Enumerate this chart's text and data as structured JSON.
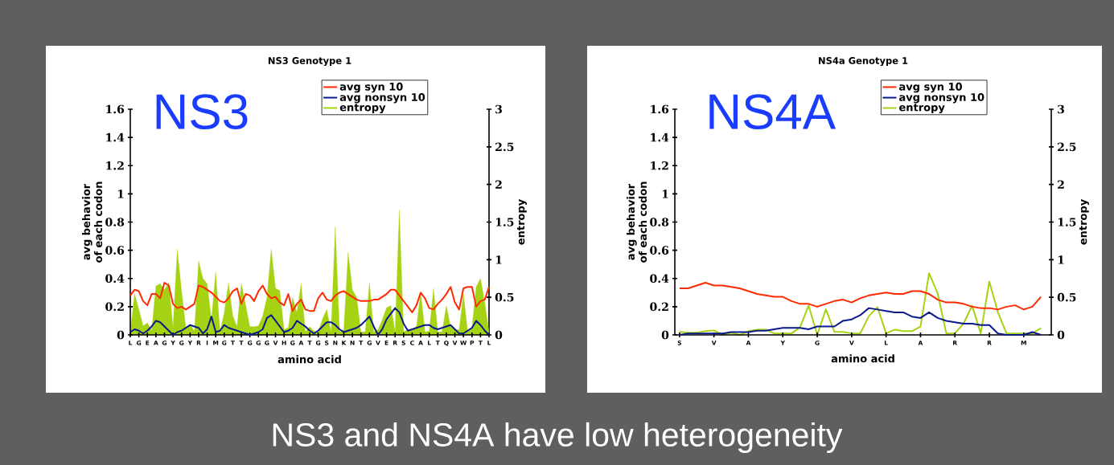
{
  "chart_data": [
    {
      "type": "line",
      "title": "NS3 Genotype 1",
      "xlabel": "amino acid",
      "ylabel": "avg behavior of each codon",
      "y2label": "entropy",
      "annotations": [
        "NS3"
      ],
      "legend": "top right",
      "categories": [
        "L",
        null,
        "G",
        null,
        "E",
        null,
        "A",
        null,
        "G",
        null,
        "Y",
        null,
        "G",
        null,
        "Y",
        null,
        "R",
        null,
        "I",
        null,
        "M",
        null,
        "G",
        null,
        "T",
        null,
        "T",
        null,
        "G",
        null,
        "G",
        null,
        "G",
        null,
        "V",
        null,
        "H",
        null,
        "G",
        null,
        "A",
        null,
        "T",
        null,
        "G",
        null,
        "S",
        null,
        "N",
        null,
        "K",
        null,
        "N",
        null,
        "T",
        null,
        "G",
        null,
        "V",
        null,
        "E",
        null,
        "R",
        null,
        "S",
        null,
        "C",
        null,
        "A",
        null,
        "L",
        null,
        "T",
        null,
        "Q",
        null,
        "V",
        null,
        "W",
        null,
        "P",
        null,
        "T",
        null,
        "L"
      ],
      "ylim": [
        0,
        1.6
      ],
      "yticks": [
        0,
        0.2,
        0.4,
        0.6,
        0.8,
        1,
        1.2,
        1.4,
        1.6
      ],
      "y2lim": [
        0,
        3
      ],
      "y2ticks": [
        0,
        0.5,
        1,
        1.5,
        2,
        2.5,
        3
      ],
      "series": [
        {
          "name": "avg syn 10",
          "color": "#ff2a00",
          "values": [
            0.28,
            0.32,
            0.31,
            0.24,
            0.21,
            0.29,
            0.29,
            0.26,
            0.37,
            0.35,
            0.22,
            0.19,
            0.2,
            0.18,
            0.2,
            0.22,
            0.35,
            0.34,
            0.32,
            0.3,
            0.27,
            0.24,
            0.23,
            0.26,
            0.31,
            0.33,
            0.22,
            0.29,
            0.28,
            0.24,
            0.31,
            0.35,
            0.29,
            0.26,
            0.27,
            0.23,
            0.21,
            0.29,
            0.17,
            0.22,
            0.25,
            0.18,
            0.17,
            0.17,
            0.26,
            0.3,
            0.25,
            0.24,
            0.28,
            0.3,
            0.31,
            0.29,
            0.27,
            0.25,
            0.24,
            0.24,
            0.24,
            0.25,
            0.25,
            0.27,
            0.29,
            0.32,
            0.32,
            0.28,
            0.24,
            0.2,
            0.16,
            0.21,
            0.3,
            0.26,
            0.19,
            0.18,
            0.22,
            0.25,
            0.29,
            0.34,
            0.23,
            0.18,
            0.33,
            0.34,
            0.34,
            0.2,
            0.24,
            0.25,
            0.34
          ]
        },
        {
          "name": "avg nonsyn 10",
          "color": "#0a1a8c",
          "values": [
            0.02,
            0.04,
            0.03,
            0.01,
            0.03,
            0.06,
            0.1,
            0.09,
            0.06,
            0.03,
            0.0,
            0.02,
            0.03,
            0.05,
            0.07,
            0.06,
            0.05,
            0.01,
            0.04,
            0.13,
            0.02,
            0.03,
            0.07,
            0.05,
            0.04,
            0.03,
            0.02,
            0.01,
            0.0,
            0.01,
            0.02,
            0.04,
            0.12,
            0.14,
            0.1,
            0.06,
            0.02,
            0.03,
            0.05,
            0.1,
            0.08,
            0.06,
            0.03,
            0.01,
            0.03,
            0.06,
            0.09,
            0.09,
            0.07,
            0.04,
            0.02,
            0.03,
            0.04,
            0.05,
            0.07,
            0.1,
            0.13,
            0.06,
            0.0,
            0.04,
            0.11,
            0.15,
            0.19,
            0.16,
            0.08,
            0.03,
            0.04,
            0.05,
            0.06,
            0.07,
            0.07,
            0.05,
            0.04,
            0.05,
            0.06,
            0.07,
            0.04,
            0.01,
            0.01,
            0.03,
            0.05,
            0.1,
            0.07,
            0.03,
            0.0
          ]
        },
        {
          "name": "entropy",
          "type": "area",
          "axis": "y2",
          "color": "#a6d214",
          "values": [
            0.04,
            0.55,
            0.34,
            0.12,
            0.16,
            0.06,
            0.65,
            0.68,
            0.6,
            0.7,
            0.1,
            1.14,
            0.59,
            0.1,
            0.14,
            0.05,
            0.98,
            0.75,
            0.68,
            0.2,
            0.84,
            0.04,
            0.3,
            0.69,
            0.25,
            0.11,
            0.68,
            0.4,
            0.11,
            0.11,
            0.12,
            0.25,
            0.5,
            1.14,
            0.62,
            0.59,
            0.07,
            0.1,
            0.5,
            0.3,
            0.68,
            0.04,
            0.11,
            0.05,
            0.04,
            0.21,
            0.34,
            0.04,
            1.44,
            0.04,
            0.07,
            1.1,
            0.6,
            0.5,
            0.04,
            0.04,
            0.69,
            0.04,
            0.07,
            0.2,
            0.36,
            0.39,
            0.04,
            1.66,
            0.04,
            0.07,
            0.08,
            0.11,
            0.57,
            0.04,
            0.05,
            0.62,
            0.04,
            0.04,
            0.39,
            0.11,
            0.07,
            0.07,
            0.55,
            0.04,
            0.1,
            0.64,
            0.75,
            0.43,
            0.04
          ]
        }
      ]
    },
    {
      "type": "line",
      "title": "NS4a Genotype 1",
      "xlabel": "amino acid",
      "ylabel": "avg behavior of each codon",
      "y2label": "entropy",
      "annotations": [
        "NS4A",
        "NS3 and NS4A have low heterogeneity"
      ],
      "legend": "top right",
      "categories": [
        "S",
        null,
        null,
        null,
        "V",
        null,
        null,
        null,
        "A",
        null,
        null,
        null,
        "Y",
        null,
        null,
        null,
        "G",
        null,
        null,
        null,
        "V",
        null,
        null,
        null,
        "L",
        null,
        null,
        null,
        "A",
        null,
        null,
        null,
        "R",
        null,
        null,
        null,
        "R",
        null,
        null,
        null,
        "M",
        null,
        null
      ],
      "ylim": [
        0,
        1.6
      ],
      "yticks": [
        0,
        0.2,
        0.4,
        0.6,
        0.8,
        1,
        1.2,
        1.4,
        1.6
      ],
      "y2lim": [
        0,
        3
      ],
      "y2ticks": [
        0,
        0.5,
        1,
        1.5,
        2,
        2.5,
        3
      ],
      "series": [
        {
          "name": "avg syn 10",
          "color": "#ff2a00",
          "values": [
            0.33,
            0.33,
            0.35,
            0.37,
            0.35,
            0.35,
            0.34,
            0.33,
            0.31,
            0.29,
            0.28,
            0.27,
            0.27,
            0.24,
            0.22,
            0.22,
            0.2,
            0.22,
            0.24,
            0.25,
            0.23,
            0.26,
            0.28,
            0.29,
            0.3,
            0.29,
            0.29,
            0.31,
            0.31,
            0.29,
            0.25,
            0.23,
            0.23,
            0.22,
            0.2,
            0.19,
            0.19,
            0.18,
            0.2,
            0.21,
            0.18,
            0.2,
            0.27
          ]
        },
        {
          "name": "avg nonsyn 10",
          "color": "#0a1a8c",
          "values": [
            0.0,
            0.01,
            0.01,
            0.01,
            0.01,
            0.01,
            0.02,
            0.02,
            0.02,
            0.03,
            0.03,
            0.04,
            0.05,
            0.05,
            0.05,
            0.04,
            0.06,
            0.06,
            0.06,
            0.1,
            0.11,
            0.14,
            0.19,
            0.18,
            0.17,
            0.16,
            0.16,
            0.13,
            0.12,
            0.16,
            0.12,
            0.1,
            0.09,
            0.08,
            0.08,
            0.07,
            0.07,
            0.01,
            0.0,
            0.0,
            0.0,
            0.02,
            0.0
          ]
        },
        {
          "name": "entropy",
          "type": "line",
          "axis": "y2",
          "color": "#a6d214",
          "values": [
            0.04,
            0.03,
            0.03,
            0.05,
            0.06,
            0.0,
            0.03,
            0.0,
            0.05,
            0.07,
            0.07,
            0.02,
            0.02,
            0.02,
            0.1,
            0.39,
            0.0,
            0.34,
            0.04,
            0.04,
            0.02,
            0.02,
            0.25,
            0.37,
            0.02,
            0.07,
            0.05,
            0.05,
            0.11,
            0.82,
            0.55,
            0.02,
            0.02,
            0.15,
            0.39,
            0.02,
            0.71,
            0.3,
            0.02,
            0.02,
            0.02,
            0.02,
            0.09
          ]
        }
      ]
    }
  ]
}
